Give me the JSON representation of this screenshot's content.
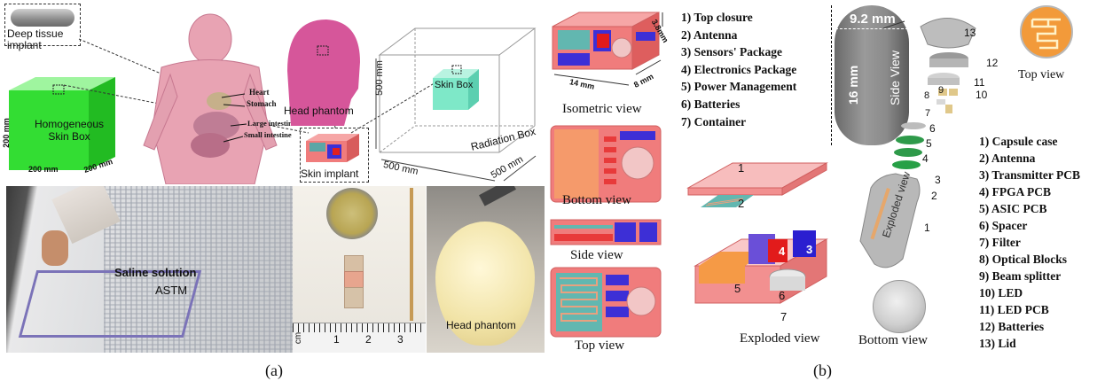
{
  "panel_a": {
    "caption": "(a)",
    "capsule_label": "Deep tissue implant",
    "skin_box": {
      "title": "Homogeneous Skin Box",
      "dim_h": "200 mm",
      "dim_w": "200 mm",
      "dim_d": "200 mm"
    },
    "body_labels": [
      "Heart",
      "Stomach",
      "Large intestine",
      "Small intestine"
    ],
    "head_phantom_label": "Head phantom",
    "skin_implant_label": "Skin implant",
    "radiation_box": {
      "inner_label": "Skin Box",
      "outer_label": "Radiation Box",
      "dim_h": "500 mm",
      "dim_w": "500 mm",
      "dim_d": "500 mm"
    },
    "photo_saline": {
      "line1": "Saline solution",
      "line2": "ASTM"
    },
    "photo_coin": {
      "ruler_unit": "cm",
      "ruler_ticks": [
        "1",
        "2",
        "3"
      ]
    },
    "photo_head": {
      "label": "Head phantom"
    },
    "views": {
      "isometric": "Isometric  view",
      "dims": [
        "3.8mm",
        "14 mm",
        "8 mm"
      ],
      "bottom": "Bottom view",
      "side": "Side view",
      "top": "Top view"
    }
  },
  "panel_b": {
    "caption": "(b)",
    "skin_implant_parts": [
      "1)  Top closure",
      "2)  Antenna",
      "3)  Sensors' Package",
      "4)  Electronics Package",
      "5)  Power Management",
      "6)  Batteries",
      "7)  Container"
    ],
    "exploded_numbers": [
      "1",
      "2",
      "3",
      "4",
      "5",
      "6",
      "7"
    ],
    "exploded_label": "Exploded  view",
    "capsule": {
      "diameter": "9.2 mm",
      "length": "16 mm",
      "side_view": "Side View",
      "exploded_view": "Exploded view",
      "bottom_view": "Bottom view",
      "top_view": "Top view"
    },
    "capsule_numbers": [
      "13",
      "12",
      "11",
      "10",
      "9",
      "8",
      "7",
      "6",
      "5",
      "4",
      "3",
      "2",
      "1"
    ],
    "capsule_parts": [
      "1)   Capsule case",
      "2)   Antenna",
      "3)   Transmitter PCB",
      "4)   FPGA PCB",
      "5)   ASIC PCB",
      "6)   Spacer",
      "7)   Filter",
      "8)   Optical Blocks",
      "9)   Beam splitter",
      "10) LED",
      "11) LED PCB",
      "12) Batteries",
      "13) Lid"
    ]
  },
  "colors": {
    "green_box": "#33dd33",
    "body_pink": "#e8a3b3",
    "head_magenta": "#d6569a",
    "skin_box_cyan": "#7ee8c8",
    "implant_pink": "#f07c7c",
    "implant_blue": "#3d2fd6",
    "capsule_grey": "#8a8a8a",
    "antenna_orange": "#f29a3a"
  }
}
